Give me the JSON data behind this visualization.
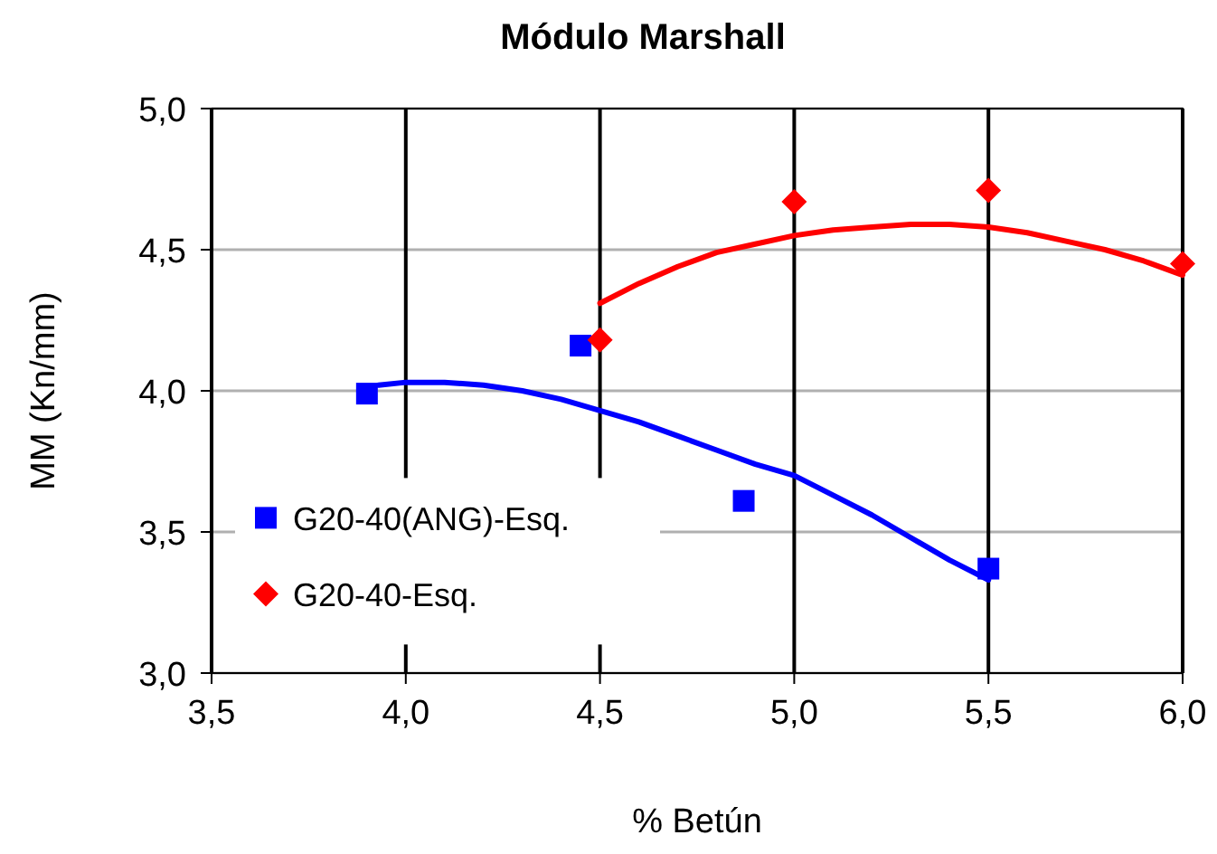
{
  "chart_data": {
    "type": "scatter",
    "title": "Módulo  Marshall",
    "xlabel": "% Betún",
    "ylabel": "MM (Kn/mm)",
    "xlim": [
      3.5,
      6.0
    ],
    "ylim": [
      3.0,
      5.0
    ],
    "xticks": [
      {
        "value": 3.5,
        "label": "3,5"
      },
      {
        "value": 4.0,
        "label": "4,0"
      },
      {
        "value": 4.5,
        "label": "4,5"
      },
      {
        "value": 5.0,
        "label": "5,0"
      },
      {
        "value": 5.5,
        "label": "5,5"
      },
      {
        "value": 6.0,
        "label": "6,0"
      }
    ],
    "yticks": [
      {
        "value": 3.0,
        "label": "3,0"
      },
      {
        "value": 3.5,
        "label": "3,5"
      },
      {
        "value": 4.0,
        "label": "4,0"
      },
      {
        "value": 4.5,
        "label": "4,5"
      },
      {
        "value": 5.0,
        "label": "5,0"
      }
    ],
    "grid": true,
    "legend": "left",
    "series": [
      {
        "name": "G20-40(ANG)-Esq.",
        "marker": "square",
        "color": "#0000ff",
        "x": [
          3.9,
          4.45,
          4.87,
          5.5
        ],
        "values": [
          3.99,
          4.16,
          3.61,
          3.37
        ]
      },
      {
        "name": "G20-40-Esq.",
        "marker": "diamond",
        "color": "#ff0000",
        "x": [
          4.5,
          5.0,
          5.5,
          6.0
        ],
        "values": [
          4.18,
          4.67,
          4.71,
          4.45
        ]
      },
      {
        "type": "line",
        "color": "#0000ff",
        "x": [
          3.93,
          4.0,
          4.1,
          4.2,
          4.3,
          4.4,
          4.5,
          4.6,
          4.7,
          4.8,
          4.9,
          5.0,
          5.1,
          5.2,
          5.3,
          5.4,
          5.5
        ],
        "values": [
          4.02,
          4.03,
          4.03,
          4.02,
          4.0,
          3.97,
          3.93,
          3.89,
          3.84,
          3.79,
          3.74,
          3.7,
          3.63,
          3.56,
          3.48,
          3.4,
          3.33
        ]
      },
      {
        "type": "line",
        "color": "#ff0000",
        "x": [
          4.5,
          4.6,
          4.7,
          4.8,
          4.9,
          5.0,
          5.1,
          5.2,
          5.3,
          5.4,
          5.5,
          5.6,
          5.7,
          5.8,
          5.9,
          6.0
        ],
        "values": [
          4.31,
          4.38,
          4.44,
          4.49,
          4.52,
          4.55,
          4.57,
          4.58,
          4.59,
          4.59,
          4.58,
          4.56,
          4.53,
          4.5,
          4.46,
          4.41
        ]
      }
    ]
  }
}
